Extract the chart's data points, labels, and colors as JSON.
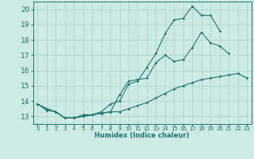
{
  "xlabel": "Humidex (Indice chaleur)",
  "ylabel": "",
  "bg_color": "#ceeae7",
  "grid_color": "#aed4d0",
  "line_color": "#1a7a6e",
  "xlim": [
    -0.5,
    23.5
  ],
  "ylim": [
    12.5,
    20.5
  ],
  "yticks": [
    13,
    14,
    15,
    16,
    17,
    18,
    19,
    20
  ],
  "xticks": [
    0,
    1,
    2,
    3,
    4,
    5,
    6,
    7,
    8,
    9,
    10,
    11,
    12,
    13,
    14,
    15,
    16,
    17,
    18,
    19,
    20,
    21,
    22,
    23
  ],
  "line1_x": [
    0,
    1,
    2,
    3,
    4,
    5,
    6,
    7,
    8,
    9,
    10,
    11,
    12,
    13,
    14,
    15,
    16,
    17,
    18,
    19,
    20,
    21
  ],
  "line1_y": [
    13.8,
    13.5,
    13.3,
    12.9,
    12.9,
    13.1,
    13.1,
    13.2,
    13.3,
    14.4,
    15.3,
    15.4,
    15.5,
    16.5,
    17.0,
    16.6,
    16.7,
    17.5,
    18.5,
    17.8,
    17.6,
    17.1
  ],
  "line2_x": [
    0,
    1,
    2,
    3,
    4,
    5,
    6,
    7,
    8,
    9,
    10,
    11,
    12,
    13,
    14,
    15,
    16,
    17,
    18,
    19,
    20
  ],
  "line2_y": [
    13.8,
    13.5,
    13.3,
    12.9,
    12.9,
    13.0,
    13.1,
    13.3,
    13.8,
    14.0,
    15.1,
    15.3,
    16.2,
    17.1,
    18.4,
    19.3,
    19.4,
    20.2,
    19.6,
    19.6,
    18.6
  ],
  "line3_x": [
    0,
    1,
    2,
    3,
    4,
    5,
    6,
    7,
    8,
    9,
    10,
    11,
    12,
    13,
    14,
    15,
    16,
    17,
    18,
    19,
    20,
    21,
    22,
    23
  ],
  "line3_y": [
    13.8,
    13.4,
    13.3,
    12.9,
    12.9,
    13.0,
    13.1,
    13.2,
    13.3,
    13.3,
    13.5,
    13.7,
    13.9,
    14.2,
    14.5,
    14.8,
    15.0,
    15.2,
    15.4,
    15.5,
    15.6,
    15.7,
    15.8,
    15.5
  ]
}
